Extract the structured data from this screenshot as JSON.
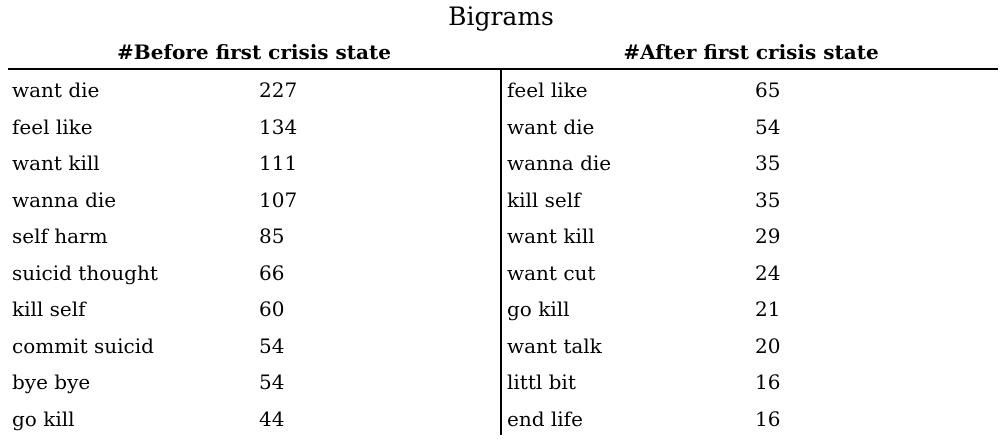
{
  "title": "Bigrams",
  "before": {
    "header": "#Before first crisis state",
    "rows": [
      {
        "term": "want die",
        "count": "227"
      },
      {
        "term": "feel like",
        "count": "134"
      },
      {
        "term": "want kill",
        "count": "111"
      },
      {
        "term": "wanna die",
        "count": "107"
      },
      {
        "term": "self harm",
        "count": "85"
      },
      {
        "term": "suicid thought",
        "count": "66"
      },
      {
        "term": "kill self",
        "count": "60"
      },
      {
        "term": "commit suicid",
        "count": "54"
      },
      {
        "term": "bye bye",
        "count": "54"
      },
      {
        "term": "go kill",
        "count": "44"
      }
    ]
  },
  "after": {
    "header": "#After first crisis state",
    "rows": [
      {
        "term": "feel like",
        "count": "65"
      },
      {
        "term": "want die",
        "count": "54"
      },
      {
        "term": "wanna die",
        "count": "35"
      },
      {
        "term": "kill self",
        "count": "35"
      },
      {
        "term": "want kill",
        "count": "29"
      },
      {
        "term": "want cut",
        "count": "24"
      },
      {
        "term": "go kill",
        "count": "21"
      },
      {
        "term": "want talk",
        "count": "20"
      },
      {
        "term": "littl bit",
        "count": "16"
      },
      {
        "term": "end life",
        "count": "16"
      }
    ]
  }
}
